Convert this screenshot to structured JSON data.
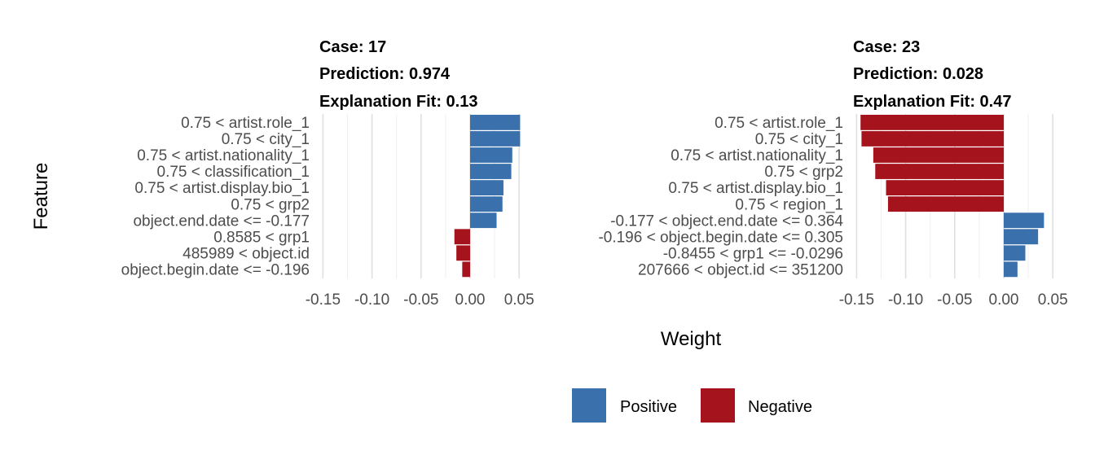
{
  "chart_data": {
    "type": "bar",
    "orientation": "horizontal",
    "xlabel": "Weight",
    "ylabel": "Feature",
    "xlim": [
      -0.155,
      0.06
    ],
    "x_ticks": [
      "-0.15",
      "-0.10",
      "-0.05",
      "0.00",
      "0.05"
    ],
    "x_tick_values": [
      -0.15,
      -0.1,
      -0.05,
      0.0,
      0.05
    ],
    "grid": true,
    "legend": {
      "position": "bottom",
      "entries": [
        {
          "label": "Positive",
          "color": "#3a70ac"
        },
        {
          "label": "Negative",
          "color": "#a5141d"
        }
      ]
    },
    "panels": [
      {
        "case_label": "Case: 17",
        "prediction_label": "Prediction: 0.974",
        "fit_label": "Explanation Fit: 0.13",
        "bars": [
          {
            "feature": "0.75 < artist.role_1",
            "weight": 0.051
          },
          {
            "feature": "0.75 < city_1",
            "weight": 0.051
          },
          {
            "feature": "0.75 < artist.nationality_1",
            "weight": 0.043
          },
          {
            "feature": "0.75 < classification_1",
            "weight": 0.042
          },
          {
            "feature": "0.75 < artist.display.bio_1",
            "weight": 0.034
          },
          {
            "feature": "0.75 < grp2",
            "weight": 0.033
          },
          {
            "feature": "object.end.date <= -0.177",
            "weight": 0.027
          },
          {
            "feature": "0.8585 < grp1",
            "weight": -0.016
          },
          {
            "feature": "485989 < object.id",
            "weight": -0.014
          },
          {
            "feature": "object.begin.date <= -0.196",
            "weight": -0.008
          }
        ]
      },
      {
        "case_label": "Case: 23",
        "prediction_label": "Prediction: 0.028",
        "fit_label": "Explanation Fit: 0.47",
        "bars": [
          {
            "feature": "0.75 < artist.role_1",
            "weight": -0.146
          },
          {
            "feature": "0.75 < city_1",
            "weight": -0.145
          },
          {
            "feature": "0.75 < artist.nationality_1",
            "weight": -0.133
          },
          {
            "feature": "0.75 < grp2",
            "weight": -0.131
          },
          {
            "feature": "0.75 < artist.display.bio_1",
            "weight": -0.12
          },
          {
            "feature": "0.75 < region_1",
            "weight": -0.118
          },
          {
            "feature": "-0.177 < object.end.date <= 0.364",
            "weight": 0.041
          },
          {
            "feature": "-0.196 < object.begin.date <= 0.305",
            "weight": 0.035
          },
          {
            "feature": "-0.8455 < grp1 <= -0.0296",
            "weight": 0.022
          },
          {
            "feature": "207666 < object.id <= 351200",
            "weight": 0.014
          }
        ]
      }
    ]
  }
}
